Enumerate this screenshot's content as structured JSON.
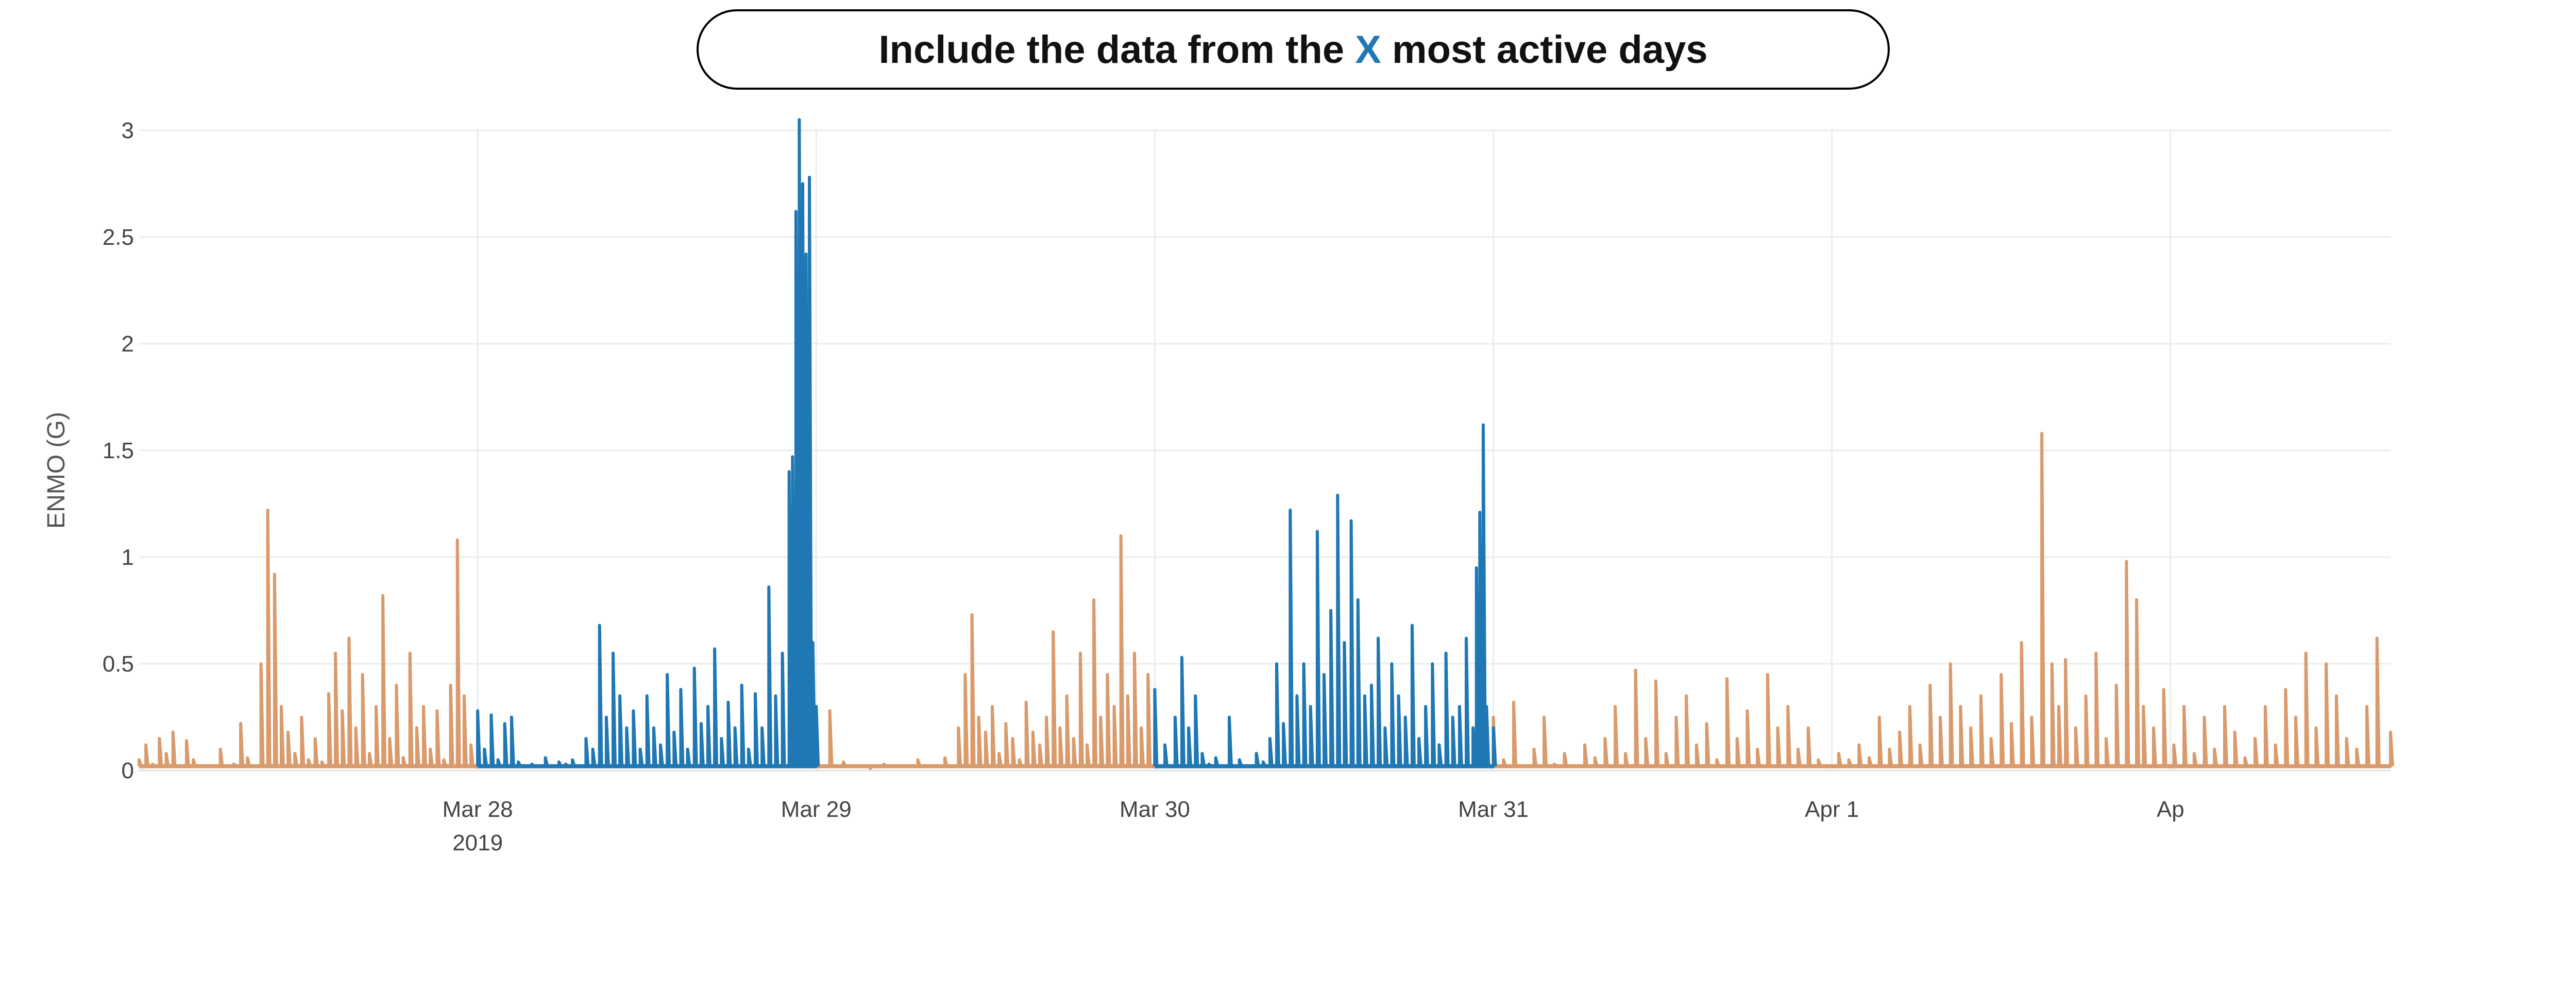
{
  "header": {
    "title_before": "Include the data from the ",
    "title_highlight": "X",
    "title_after": " most active days",
    "highlight_color": "#1f77b4"
  },
  "chart_data": {
    "type": "line",
    "ylabel": "ENMO (G)",
    "xlabel": "",
    "ylim": [
      0,
      3.2
    ],
    "yticks": [
      0,
      0.5,
      1,
      1.5,
      2,
      2.5,
      3
    ],
    "ytick_labels": [
      "0",
      "0.5",
      "1",
      "1.5",
      "2",
      "2.5",
      "3"
    ],
    "xlim_days": [
      -1.0,
      5.65
    ],
    "xticks": [
      0,
      1,
      2,
      3,
      4,
      5
    ],
    "xtick_labels": [
      "Mar 28",
      "Mar 29",
      "Mar 30",
      "Mar 31",
      "Apr 1",
      "Ap"
    ],
    "xtick_sublabels": [
      "2019",
      "",
      "",
      "",
      "",
      ""
    ],
    "grid": true,
    "series": [
      {
        "color": "#d99a6c",
        "segments": [
          {
            "x": [
              -1.0,
              -0.98,
              -0.96,
              -0.94,
              -0.92,
              -0.9,
              -0.88,
              -0.86,
              -0.84,
              -0.8,
              -0.76,
              -0.72,
              -0.7,
              -0.68,
              -0.64,
              -0.62,
              -0.6,
              -0.58,
              -0.56,
              -0.54,
              -0.52,
              -0.5,
              -0.48,
              -0.46,
              -0.44,
              -0.42,
              -0.4,
              -0.38,
              -0.36,
              -0.34,
              -0.32,
              -0.3,
              -0.28,
              -0.26,
              -0.24,
              -0.22,
              -0.2,
              -0.18,
              -0.16,
              -0.14,
              -0.12,
              -0.1,
              -0.08,
              -0.06,
              -0.04,
              -0.02,
              0.0
            ],
            "y": [
              0.05,
              0.12,
              0.03,
              0.15,
              0.08,
              0.18,
              0.02,
              0.14,
              0.05,
              0.02,
              0.1,
              0.03,
              0.22,
              0.06,
              0.5,
              1.22,
              0.92,
              0.3,
              0.18,
              0.08,
              0.25,
              0.05,
              0.15,
              0.04,
              0.36,
              0.55,
              0.28,
              0.62,
              0.2,
              0.45,
              0.08,
              0.3,
              0.82,
              0.15,
              0.4,
              0.06,
              0.55,
              0.2,
              0.3,
              0.1,
              0.28,
              0.05,
              0.4,
              1.08,
              0.35,
              0.12,
              0.05
            ]
          },
          {
            "x": [
              1.0,
              1.04,
              1.08,
              1.12,
              1.16,
              1.2,
              1.26,
              1.3,
              1.34,
              1.38,
              1.42,
              1.44,
              1.46,
              1.48,
              1.5,
              1.52,
              1.54,
              1.56,
              1.58,
              1.6,
              1.62,
              1.64,
              1.66,
              1.68,
              1.7,
              1.72,
              1.74,
              1.76,
              1.78,
              1.8,
              1.82,
              1.84,
              1.86,
              1.88,
              1.9,
              1.92,
              1.94,
              1.96,
              1.98,
              2.0
            ],
            "y": [
              0.08,
              0.28,
              0.04,
              0.02,
              0.01,
              0.03,
              0.02,
              0.05,
              0.02,
              0.06,
              0.2,
              0.45,
              0.73,
              0.25,
              0.18,
              0.3,
              0.08,
              0.22,
              0.15,
              0.05,
              0.32,
              0.18,
              0.12,
              0.25,
              0.65,
              0.2,
              0.35,
              0.15,
              0.55,
              0.12,
              0.8,
              0.25,
              0.45,
              0.3,
              1.1,
              0.35,
              0.55,
              0.2,
              0.45,
              0.15
            ]
          },
          {
            "x": [
              3.0,
              3.03,
              3.06,
              3.09,
              3.12,
              3.15,
              3.18,
              3.21,
              3.24,
              3.27,
              3.3,
              3.33,
              3.36,
              3.39,
              3.42,
              3.45,
              3.48,
              3.51,
              3.54,
              3.57,
              3.6,
              3.63,
              3.66,
              3.69,
              3.72,
              3.75,
              3.78,
              3.81,
              3.84,
              3.87,
              3.9,
              3.93,
              3.96,
              3.99,
              4.02,
              4.05,
              4.08,
              4.11,
              4.14,
              4.17,
              4.2,
              4.23,
              4.26,
              4.29,
              4.32,
              4.35,
              4.38,
              4.41,
              4.44,
              4.47,
              4.5,
              4.53,
              4.56,
              4.59,
              4.62,
              4.65,
              4.67,
              4.69,
              4.72,
              4.75,
              4.78,
              4.81,
              4.84,
              4.87,
              4.9,
              4.92,
              4.95,
              4.98,
              5.01,
              5.04,
              5.07,
              5.1,
              5.13,
              5.16,
              5.19,
              5.22,
              5.25,
              5.28,
              5.31,
              5.34,
              5.37,
              5.4,
              5.43,
              5.46,
              5.49,
              5.52,
              5.55,
              5.58,
              5.61,
              5.65
            ],
            "y": [
              0.25,
              0.05,
              0.32,
              0.02,
              0.1,
              0.25,
              0.03,
              0.08,
              0.02,
              0.12,
              0.06,
              0.15,
              0.3,
              0.08,
              0.47,
              0.15,
              0.42,
              0.08,
              0.25,
              0.35,
              0.12,
              0.22,
              0.05,
              0.43,
              0.15,
              0.28,
              0.1,
              0.45,
              0.2,
              0.3,
              0.1,
              0.2,
              0.05,
              0.02,
              0.08,
              0.05,
              0.12,
              0.06,
              0.25,
              0.1,
              0.18,
              0.3,
              0.12,
              0.4,
              0.25,
              0.5,
              0.3,
              0.2,
              0.35,
              0.15,
              0.45,
              0.22,
              0.6,
              0.25,
              1.58,
              0.5,
              0.3,
              0.52,
              0.2,
              0.35,
              0.55,
              0.15,
              0.4,
              0.98,
              0.8,
              0.3,
              0.2,
              0.38,
              0.12,
              0.3,
              0.08,
              0.25,
              0.1,
              0.3,
              0.18,
              0.06,
              0.15,
              0.3,
              0.12,
              0.38,
              0.25,
              0.55,
              0.2,
              0.5,
              0.35,
              0.15,
              0.1,
              0.3,
              0.62,
              0.18
            ]
          }
        ]
      },
      {
        "color": "#1f77b4",
        "segments": [
          {
            "x": [
              0.0,
              0.02,
              0.04,
              0.06,
              0.08,
              0.1,
              0.12,
              0.14,
              0.16,
              0.18,
              0.2,
              0.22,
              0.24,
              0.26,
              0.28,
              0.3,
              0.32,
              0.34,
              0.36,
              0.38,
              0.4,
              0.42,
              0.44,
              0.46,
              0.48,
              0.5,
              0.52,
              0.54,
              0.56,
              0.58,
              0.6,
              0.62,
              0.64,
              0.66,
              0.68,
              0.7,
              0.72,
              0.74,
              0.76,
              0.78,
              0.8,
              0.82,
              0.84,
              0.86,
              0.88,
              0.9,
              0.92,
              0.93,
              0.94,
              0.95,
              0.96,
              0.97,
              0.98,
              0.99,
              1.0
            ],
            "y": [
              0.28,
              0.1,
              0.26,
              0.05,
              0.22,
              0.25,
              0.04,
              0.02,
              0.03,
              0.02,
              0.06,
              0.02,
              0.04,
              0.03,
              0.05,
              0.02,
              0.15,
              0.1,
              0.68,
              0.25,
              0.55,
              0.35,
              0.2,
              0.28,
              0.1,
              0.35,
              0.2,
              0.12,
              0.45,
              0.18,
              0.38,
              0.1,
              0.48,
              0.22,
              0.3,
              0.57,
              0.15,
              0.32,
              0.2,
              0.4,
              0.1,
              0.36,
              0.2,
              0.86,
              0.35,
              0.55,
              1.4,
              1.47,
              2.62,
              3.05,
              2.75,
              2.42,
              2.78,
              0.6,
              0.3
            ]
          },
          {
            "x": [
              2.0,
              2.03,
              2.06,
              2.08,
              2.1,
              2.12,
              2.14,
              2.16,
              2.18,
              2.2,
              2.22,
              2.25,
              2.28,
              2.3,
              2.32,
              2.34,
              2.36,
              2.38,
              2.4,
              2.42,
              2.44,
              2.46,
              2.48,
              2.5,
              2.52,
              2.54,
              2.56,
              2.58,
              2.6,
              2.62,
              2.64,
              2.66,
              2.68,
              2.7,
              2.72,
              2.74,
              2.76,
              2.78,
              2.8,
              2.82,
              2.84,
              2.86,
              2.88,
              2.9,
              2.92,
              2.94,
              2.95,
              2.96,
              2.97,
              2.98,
              3.0
            ],
            "y": [
              0.38,
              0.12,
              0.25,
              0.53,
              0.2,
              0.35,
              0.08,
              0.03,
              0.06,
              0.02,
              0.25,
              0.05,
              0.02,
              0.08,
              0.04,
              0.15,
              0.5,
              0.22,
              1.22,
              0.35,
              0.5,
              0.3,
              1.12,
              0.45,
              0.75,
              1.29,
              0.6,
              1.17,
              0.8,
              0.35,
              0.4,
              0.62,
              0.2,
              0.5,
              0.35,
              0.25,
              0.68,
              0.15,
              0.3,
              0.5,
              0.12,
              0.55,
              0.25,
              0.3,
              0.62,
              0.2,
              0.95,
              1.21,
              1.62,
              0.3,
              0.2
            ]
          }
        ]
      }
    ]
  }
}
